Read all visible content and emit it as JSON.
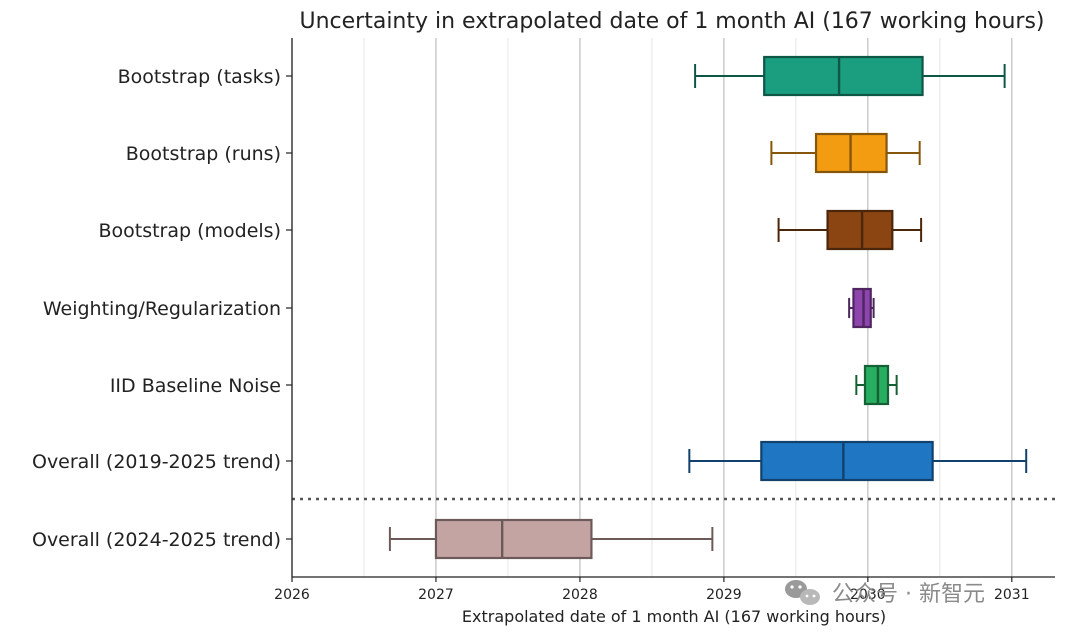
{
  "chart_data": {
    "type": "boxplot",
    "title": "Uncertainty in extrapolated date of 1 month AI (167 working hours)",
    "xlabel": "Extrapolated date of 1 month AI (167 working hours)",
    "ylabel": "",
    "xlim": [
      2026,
      2031.3
    ],
    "x_ticks": [
      "2026",
      "2027",
      "2028",
      "2029",
      "2030",
      "2031"
    ],
    "grid": "vertical, major and minor",
    "series": [
      {
        "name": "Bootstrap (tasks)",
        "whisker_low": 2028.8,
        "q1": 2029.28,
        "median": 2029.8,
        "q3": 2030.38,
        "whisker_high": 2030.95,
        "color": "#1a9e7f"
      },
      {
        "name": "Bootstrap (runs)",
        "whisker_low": 2029.33,
        "q1": 2029.64,
        "median": 2029.88,
        "q3": 2030.13,
        "whisker_high": 2030.36,
        "color": "#f39c12"
      },
      {
        "name": "Bootstrap (models)",
        "whisker_low": 2029.38,
        "q1": 2029.72,
        "median": 2029.96,
        "q3": 2030.17,
        "whisker_high": 2030.37,
        "color": "#8b4513"
      },
      {
        "name": "Weighting/Regularization",
        "whisker_low": 2029.87,
        "q1": 2029.9,
        "median": 2029.97,
        "q3": 2030.02,
        "whisker_high": 2030.04,
        "color": "#8e44ad"
      },
      {
        "name": "IID Baseline Noise",
        "whisker_low": 2029.92,
        "q1": 2029.98,
        "median": 2030.07,
        "q3": 2030.14,
        "whisker_high": 2030.2,
        "color": "#27ae60"
      },
      {
        "name": "Overall (2019-2025 trend)",
        "whisker_low": 2028.76,
        "q1": 2029.26,
        "median": 2029.83,
        "q3": 2030.45,
        "whisker_high": 2031.1,
        "color": "#1f77c4"
      },
      {
        "name": "Overall (2024-2025 trend)",
        "whisker_low": 2026.68,
        "q1": 2027.0,
        "median": 2027.46,
        "q3": 2028.08,
        "whisker_high": 2028.92,
        "color": "#c4a4a3"
      }
    ],
    "separator": "dotted line between Overall (2019-2025 trend) and Overall (2024-2025 trend)"
  },
  "watermark": {
    "text": "公众号 · 新智元",
    "icon": "wechat-icon"
  }
}
